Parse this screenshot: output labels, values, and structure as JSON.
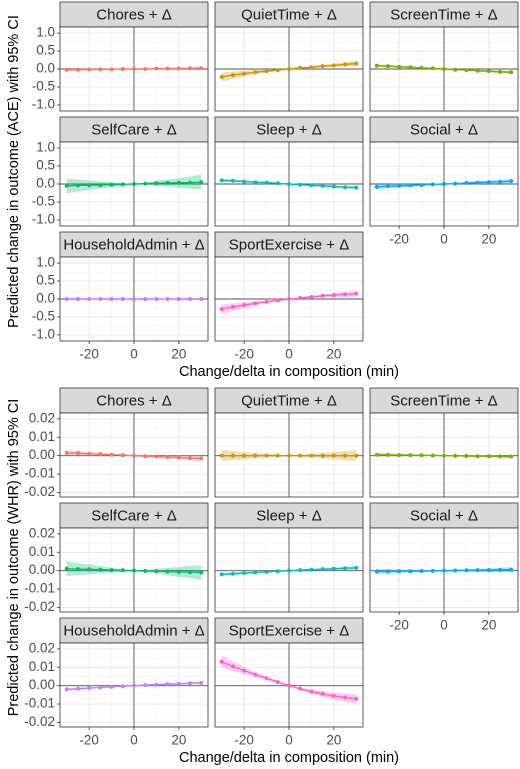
{
  "chart_data": [
    {
      "type": "line",
      "y_label": "Predicted change in outcome (ACE) with 95% CI",
      "x_label": "Change/delta in composition (min)",
      "x": [
        -30,
        -25,
        -20,
        -15,
        -10,
        -5,
        0,
        5,
        10,
        15,
        20,
        25,
        30
      ],
      "xlim": [
        -33,
        33
      ],
      "xticks": [
        -20,
        0,
        20
      ],
      "ylim": [
        -1.17,
        1.17
      ],
      "yticks": [
        {
          "value": -1,
          "label": "-1.0"
        },
        -0.5,
        {
          "value": 0,
          "label": "0.0"
        },
        0.5,
        {
          "value": 1,
          "label": "1.0"
        }
      ],
      "hline": 0,
      "vline": 0,
      "grid": true,
      "panels": [
        {
          "title": "Chores + Δ",
          "color": "#F8766D",
          "values": [
            -0.02,
            -0.02,
            -0.01,
            -0.01,
            -0.01,
            0,
            0,
            0,
            0.01,
            0.01,
            0.01,
            0.02,
            0.02
          ],
          "lower": [
            -0.07,
            -0.06,
            -0.04,
            -0.04,
            -0.03,
            -0.01,
            0,
            -0.01,
            -0.01,
            -0.02,
            -0.02,
            -0.02,
            -0.03
          ],
          "upper": [
            0.03,
            0.02,
            0.02,
            0.02,
            0.01,
            0.01,
            0,
            0.01,
            0.03,
            0.04,
            0.04,
            0.06,
            0.07
          ]
        },
        {
          "title": "QuietTime + Δ",
          "color": "#CD9600",
          "values": [
            -0.22,
            -0.17,
            -0.13,
            -0.09,
            -0.06,
            -0.03,
            0,
            0.03,
            0.05,
            0.08,
            0.1,
            0.13,
            0.15
          ],
          "lower": [
            -0.35,
            -0.28,
            -0.21,
            -0.15,
            -0.1,
            -0.05,
            0,
            0.01,
            0.02,
            0.04,
            0.05,
            0.06,
            0.08
          ],
          "upper": [
            -0.1,
            -0.07,
            -0.05,
            -0.03,
            -0.02,
            -0.01,
            0,
            0.05,
            0.08,
            0.12,
            0.15,
            0.19,
            0.22
          ]
        },
        {
          "title": "ScreenTime + Δ",
          "color": "#7CAE00",
          "values": [
            0.09,
            0.08,
            0.06,
            0.05,
            0.03,
            0.02,
            0,
            -0.02,
            -0.03,
            -0.05,
            -0.06,
            -0.08,
            -0.09
          ],
          "lower": [
            0.04,
            0.04,
            0.03,
            0.02,
            0.01,
            0.01,
            0,
            -0.03,
            -0.05,
            -0.08,
            -0.09,
            -0.12,
            -0.14
          ],
          "upper": [
            0.14,
            0.12,
            0.09,
            0.08,
            0.05,
            0.03,
            0,
            -0.01,
            -0.01,
            -0.02,
            -0.03,
            -0.04,
            -0.04
          ]
        },
        {
          "title": "SelfCare + Δ",
          "color": "#00BE67",
          "values": [
            -0.05,
            -0.04,
            -0.03,
            -0.03,
            -0.02,
            -0.01,
            0,
            0.01,
            0.02,
            0.03,
            0.03,
            0.04,
            0.05
          ],
          "lower": [
            -0.25,
            -0.21,
            -0.16,
            -0.13,
            -0.09,
            -0.04,
            0,
            -0.02,
            -0.05,
            -0.07,
            -0.1,
            -0.13,
            -0.15
          ],
          "upper": [
            0.15,
            0.13,
            0.1,
            0.07,
            0.05,
            0.02,
            0,
            0.04,
            0.09,
            0.13,
            0.16,
            0.21,
            0.25
          ]
        },
        {
          "title": "Sleep + Δ",
          "color": "#00BFC4",
          "values": [
            0.1,
            0.09,
            0.07,
            0.05,
            0.04,
            0.02,
            0,
            -0.02,
            -0.04,
            -0.05,
            -0.07,
            -0.09,
            -0.1
          ],
          "lower": [
            0.05,
            0.05,
            0.04,
            0.02,
            0.02,
            0.01,
            0,
            -0.03,
            -0.06,
            -0.08,
            -0.1,
            -0.13,
            -0.15
          ],
          "upper": [
            0.15,
            0.13,
            0.1,
            0.08,
            0.06,
            0.03,
            0,
            -0.01,
            -0.02,
            -0.02,
            -0.04,
            -0.05,
            -0.05
          ]
        },
        {
          "title": "Social + Δ",
          "color": "#00A9FF",
          "values": [
            -0.08,
            -0.06,
            -0.05,
            -0.04,
            -0.03,
            -0.01,
            0,
            0.01,
            0.03,
            0.04,
            0.05,
            0.06,
            0.08
          ],
          "lower": [
            -0.15,
            -0.12,
            -0.1,
            -0.08,
            -0.05,
            -0.02,
            0,
            0,
            0.01,
            0,
            0,
            0,
            0.01
          ],
          "upper": [
            -0.01,
            0,
            0,
            0,
            -0.01,
            0,
            0,
            0.02,
            0.05,
            0.08,
            0.1,
            0.12,
            0.15
          ]
        },
        {
          "title": "HouseholdAdmin + Δ",
          "color": "#C77CFF",
          "values": [
            0,
            0,
            0,
            0,
            0,
            0,
            0,
            0,
            0,
            0,
            0,
            0,
            0
          ],
          "lower": [
            -0.02,
            -0.02,
            -0.01,
            -0.01,
            -0.01,
            0,
            0,
            0,
            -0.01,
            -0.01,
            -0.01,
            -0.02,
            -0.02
          ],
          "upper": [
            0.02,
            0.02,
            0.01,
            0.01,
            0.01,
            0,
            0,
            0,
            0.01,
            0.01,
            0.01,
            0.02,
            0.02
          ]
        },
        {
          "title": "SportExercise + Δ",
          "color": "#FF61CC",
          "values": [
            -0.28,
            -0.22,
            -0.17,
            -0.12,
            -0.08,
            -0.04,
            0,
            0.03,
            0.06,
            0.09,
            0.11,
            0.13,
            0.15
          ],
          "lower": [
            -0.42,
            -0.33,
            -0.25,
            -0.18,
            -0.12,
            -0.06,
            0,
            0.01,
            0.03,
            0.04,
            0.05,
            0.06,
            0.07
          ],
          "upper": [
            -0.15,
            -0.12,
            -0.09,
            -0.07,
            -0.05,
            -0.02,
            0,
            0.05,
            0.09,
            0.13,
            0.17,
            0.21,
            0.24
          ]
        }
      ]
    },
    {
      "type": "line",
      "y_label": "Predicted change in outcome (WHR) with 95% CI",
      "x_label": "Change/delta in composition (min)",
      "x": [
        -30,
        -25,
        -20,
        -15,
        -10,
        -5,
        0,
        5,
        10,
        15,
        20,
        25,
        30
      ],
      "xlim": [
        -33,
        33
      ],
      "xticks": [
        -20,
        0,
        20
      ],
      "ylim": [
        -0.0225,
        0.0232
      ],
      "yticks": [
        -0.02,
        -0.01,
        {
          "value": 0,
          "label": "0.00"
        },
        0.01,
        0.02
      ],
      "hline": 0,
      "vline": 0,
      "grid": true,
      "panels": [
        {
          "title": "Chores + Δ",
          "color": "#F8766D",
          "values": [
            0.0015,
            0.0013,
            0.001,
            0.0008,
            0.0005,
            0.0003,
            0,
            -0.0003,
            -0.0005,
            -0.0008,
            -0.001,
            -0.0013,
            -0.0015
          ],
          "lower": [
            0,
            0,
            0,
            0,
            0,
            0,
            0,
            -0.0006,
            -0.001,
            -0.0016,
            -0.002,
            -0.0026,
            -0.003
          ],
          "upper": [
            0.003,
            0.0026,
            0.002,
            0.0016,
            0.001,
            0.0006,
            0,
            0,
            0,
            0,
            0,
            0,
            0
          ]
        },
        {
          "title": "QuietTime + Δ",
          "color": "#CD9600",
          "values": [
            0,
            0,
            0,
            0,
            0,
            0,
            0,
            0,
            0,
            0,
            0,
            0,
            0
          ],
          "lower": [
            -0.003,
            -0.0025,
            -0.002,
            -0.0015,
            -0.001,
            -0.0005,
            0,
            -0.0005,
            -0.001,
            -0.0015,
            -0.002,
            -0.0025,
            -0.003
          ],
          "upper": [
            0.003,
            0.0025,
            0.002,
            0.0015,
            0.001,
            0.0005,
            0,
            0.0005,
            0.001,
            0.0015,
            0.002,
            0.0025,
            0.003
          ]
        },
        {
          "title": "ScreenTime + Δ",
          "color": "#7CAE00",
          "values": [
            0.0005,
            0.0004,
            0.0003,
            0.0003,
            0.0002,
            0.0001,
            0,
            -0.0001,
            -0.0002,
            -0.0003,
            -0.0003,
            -0.0004,
            -0.0005
          ],
          "lower": [
            -0.0005,
            -0.0004,
            -0.0004,
            -0.0002,
            -0.0001,
            -0.0001,
            0,
            -0.0003,
            -0.0005,
            -0.0008,
            -0.001,
            -0.0012,
            -0.0015
          ],
          "upper": [
            0.0015,
            0.0012,
            0.001,
            0.0008,
            0.0005,
            0.0003,
            0,
            0.0001,
            0.0001,
            0.0002,
            0.0004,
            0.0004,
            0.0005
          ]
        },
        {
          "title": "SelfCare + Δ",
          "color": "#00BE67",
          "values": [
            0.001,
            0.0008,
            0.0007,
            0.0005,
            0.0003,
            0.0002,
            0,
            -0.0002,
            -0.0003,
            -0.0005,
            -0.0007,
            -0.0008,
            -0.001
          ],
          "lower": [
            -0.003,
            -0.0025,
            -0.002,
            -0.0015,
            -0.001,
            -0.0005,
            0,
            -0.0009,
            -0.0016,
            -0.0025,
            -0.0034,
            -0.0041,
            -0.005
          ],
          "upper": [
            0.005,
            0.0041,
            0.0034,
            0.0025,
            0.0016,
            0.0009,
            0,
            0.0005,
            0.001,
            0.0015,
            0.002,
            0.0025,
            0.003
          ]
        },
        {
          "title": "Sleep + Δ",
          "color": "#00BFC4",
          "values": [
            -0.002,
            -0.0017,
            -0.0013,
            -0.001,
            -0.0007,
            -0.0003,
            0,
            0.0003,
            0.0005,
            0.0008,
            0.001,
            0.0013,
            0.0015
          ],
          "lower": [
            -0.003,
            -0.0025,
            -0.002,
            -0.0015,
            -0.001,
            -0.0005,
            0,
            0.0001,
            0.0002,
            0.0003,
            0.0003,
            0.0005,
            0.0005
          ],
          "upper": [
            -0.001,
            -0.0009,
            -0.0006,
            -0.0005,
            -0.0004,
            -0.0001,
            0,
            0.0005,
            0.0008,
            0.0013,
            0.0017,
            0.0021,
            0.0025
          ]
        },
        {
          "title": "Social + Δ",
          "color": "#00A9FF",
          "values": [
            -0.0005,
            -0.0004,
            -0.0003,
            -0.0003,
            -0.0002,
            -0.0001,
            0,
            0.0001,
            0.0002,
            0.0003,
            0.0003,
            0.0004,
            0.0005
          ],
          "lower": [
            -0.002,
            -0.0017,
            -0.0013,
            -0.0011,
            -0.0007,
            -0.0004,
            0,
            -0.0002,
            -0.0003,
            -0.0005,
            -0.0007,
            -0.0009,
            -0.001
          ],
          "upper": [
            0.001,
            0.0009,
            0.0007,
            0.0005,
            0.0003,
            0.0002,
            0,
            0.0004,
            0.0007,
            0.0011,
            0.0013,
            0.0017,
            0.002
          ]
        },
        {
          "title": "HouseholdAdmin + Δ",
          "color": "#C77CFF",
          "values": [
            -0.002,
            -0.0017,
            -0.0013,
            -0.001,
            -0.0007,
            -0.0003,
            0,
            0.0003,
            0.0005,
            0.0008,
            0.001,
            0.0013,
            0.0015
          ],
          "lower": [
            -0.0027,
            -0.0023,
            -0.0018,
            -0.0014,
            -0.0009,
            -0.0004,
            0,
            0.0002,
            0.0003,
            0.0004,
            0.0005,
            0.0007,
            0.0008
          ],
          "upper": [
            -0.0013,
            -0.0011,
            -0.0008,
            -0.0006,
            -0.0005,
            -0.0002,
            0,
            0.0004,
            0.0007,
            0.0012,
            0.0015,
            0.0019,
            0.0022
          ]
        },
        {
          "title": "SportExercise + Δ",
          "color": "#FF61CC",
          "values": [
            0.013,
            0.0105,
            0.0082,
            0.006,
            0.004,
            0.002,
            0,
            -0.0017,
            -0.0032,
            -0.0045,
            -0.0056,
            -0.0065,
            -0.0072
          ],
          "lower": [
            0.0095,
            0.0078,
            0.0062,
            0.0046,
            0.0031,
            0.0015,
            0,
            -0.0023,
            -0.0043,
            -0.006,
            -0.0075,
            -0.0088,
            -0.0098
          ],
          "upper": [
            0.0165,
            0.0132,
            0.0102,
            0.0074,
            0.0049,
            0.0025,
            0,
            -0.0011,
            -0.0021,
            -0.003,
            -0.0037,
            -0.0042,
            -0.0046
          ]
        }
      ]
    }
  ]
}
